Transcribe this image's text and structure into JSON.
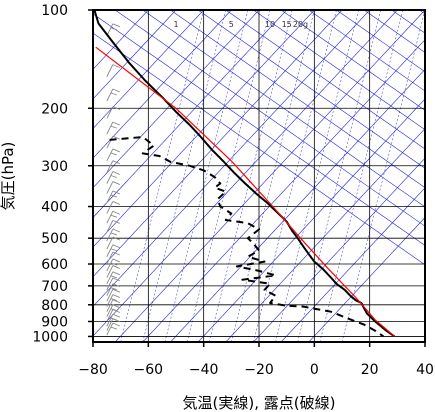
{
  "chart_data": {
    "type": "line",
    "title": "",
    "xlabel": "気温(実線), 露点(破線)",
    "ylabel": "気圧(hPa)",
    "x_ticks": [
      -80,
      -60,
      -40,
      -20,
      0,
      20,
      40
    ],
    "y_ticks": [
      100,
      200,
      300,
      400,
      500,
      600,
      700,
      800,
      900,
      1000
    ],
    "xlim": [
      -80,
      40
    ],
    "ylim": [
      1040,
      100
    ],
    "y_scale": "log",
    "mixing_ratio_labels": [
      "1",
      "5",
      "10",
      "15",
      "20g"
    ],
    "series": [
      {
        "style": "solid-black",
        "points": [
          [
            -79.5,
            100
          ],
          [
            -78,
            110
          ],
          [
            -73,
            125
          ],
          [
            -67,
            145
          ],
          [
            -61,
            165
          ],
          [
            -55,
            185
          ],
          [
            -50,
            205
          ],
          [
            -45,
            225
          ],
          [
            -41,
            245
          ],
          [
            -37,
            268
          ],
          [
            -33,
            290
          ],
          [
            -29,
            315
          ],
          [
            -25,
            340
          ],
          [
            -21,
            365
          ],
          [
            -17,
            390
          ],
          [
            -13,
            420
          ],
          [
            -10,
            445
          ],
          [
            -8,
            475
          ],
          [
            -6,
            500
          ],
          [
            -4,
            530
          ],
          [
            -2,
            560
          ],
          [
            0,
            590
          ],
          [
            3,
            620
          ],
          [
            6,
            660
          ],
          [
            8,
            690
          ],
          [
            11,
            720
          ],
          [
            13,
            750
          ],
          [
            15,
            775
          ],
          [
            17,
            790
          ],
          [
            18,
            820
          ],
          [
            19,
            850
          ],
          [
            22,
            900
          ],
          [
            26,
            960
          ],
          [
            29,
            1000
          ]
        ]
      },
      {
        "style": "red",
        "points": [
          [
            -79,
            130
          ],
          [
            -50,
            200
          ],
          [
            -30,
            290
          ],
          [
            -15,
            400
          ],
          [
            -5,
            500
          ],
          [
            5,
            620
          ],
          [
            15,
            760
          ],
          [
            22,
            890
          ],
          [
            29,
            1000
          ]
        ]
      },
      {
        "style": "dashed-black",
        "points": [
          [
            -74,
            250
          ],
          [
            -62,
            245
          ],
          [
            -58,
            260
          ],
          [
            -62,
            275
          ],
          [
            -56,
            280
          ],
          [
            -52,
            292
          ],
          [
            -45,
            300
          ],
          [
            -40,
            310
          ],
          [
            -36,
            325
          ],
          [
            -34,
            340
          ],
          [
            -36,
            350
          ],
          [
            -32,
            360
          ],
          [
            -35,
            380
          ],
          [
            -34,
            400
          ],
          [
            -30,
            420
          ],
          [
            -32,
            440
          ],
          [
            -24,
            450
          ],
          [
            -20,
            470
          ],
          [
            -24,
            500
          ],
          [
            -22,
            520
          ],
          [
            -20,
            545
          ],
          [
            -24,
            570
          ],
          [
            -18,
            590
          ],
          [
            -28,
            610
          ],
          [
            -20,
            630
          ],
          [
            -14,
            650
          ],
          [
            -26,
            670
          ],
          [
            -16,
            690
          ],
          [
            -18,
            720
          ],
          [
            -14,
            750
          ],
          [
            -16,
            790
          ],
          [
            -10,
            805
          ],
          [
            -4,
            810
          ],
          [
            6,
            840
          ],
          [
            12,
            880
          ],
          [
            18,
            920
          ],
          [
            22,
            960
          ],
          [
            25,
            1000
          ]
        ]
      }
    ],
    "wind_barbs": {
      "x_temp": -75,
      "pressures": [
        120,
        160,
        190,
        215,
        240,
        265,
        290,
        315,
        340,
        365,
        390,
        420,
        450,
        480,
        510,
        540,
        570,
        600,
        630,
        660,
        690,
        720,
        750,
        780,
        810,
        840,
        870,
        900,
        930,
        960,
        990
      ]
    },
    "colors": {
      "temperature": "#000000",
      "reference": "#ff0000",
      "dewpoint": "#000000",
      "background_lines": "#2424e0",
      "grid": "#000000",
      "frame": "#000000"
    },
    "grid": true
  }
}
